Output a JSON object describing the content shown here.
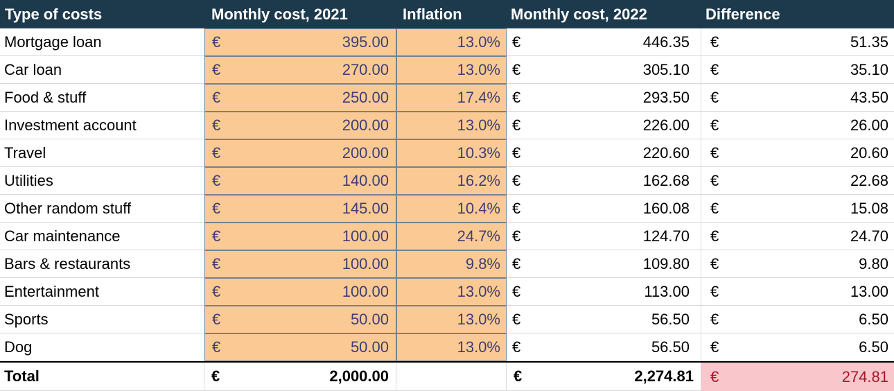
{
  "table": {
    "currency_symbol": "€",
    "headers": {
      "type": "Type of costs",
      "cost_2021": "Monthly cost, 2021",
      "inflation": "Inflation",
      "cost_2022": "Monthly cost, 2022",
      "difference": "Difference"
    },
    "rows": [
      {
        "type": "Mortgage loan",
        "cost_2021": "395.00",
        "inflation": "13.0%",
        "cost_2022": "446.35",
        "difference": "51.35"
      },
      {
        "type": "Car loan",
        "cost_2021": "270.00",
        "inflation": "13.0%",
        "cost_2022": "305.10",
        "difference": "35.10"
      },
      {
        "type": "Food & stuff",
        "cost_2021": "250.00",
        "inflation": "17.4%",
        "cost_2022": "293.50",
        "difference": "43.50"
      },
      {
        "type": "Investment account",
        "cost_2021": "200.00",
        "inflation": "13.0%",
        "cost_2022": "226.00",
        "difference": "26.00"
      },
      {
        "type": "Travel",
        "cost_2021": "200.00",
        "inflation": "10.3%",
        "cost_2022": "220.60",
        "difference": "20.60"
      },
      {
        "type": "Utilities",
        "cost_2021": "140.00",
        "inflation": "16.2%",
        "cost_2022": "162.68",
        "difference": "22.68"
      },
      {
        "type": "Other random stuff",
        "cost_2021": "145.00",
        "inflation": "10.4%",
        "cost_2022": "160.08",
        "difference": "15.08"
      },
      {
        "type": "Car maintenance",
        "cost_2021": "100.00",
        "inflation": "24.7%",
        "cost_2022": "124.70",
        "difference": "24.70"
      },
      {
        "type": "Bars & restaurants",
        "cost_2021": "100.00",
        "inflation": "9.8%",
        "cost_2022": "109.80",
        "difference": "9.80"
      },
      {
        "type": "Entertainment",
        "cost_2021": "100.00",
        "inflation": "13.0%",
        "cost_2022": "113.00",
        "difference": "13.00"
      },
      {
        "type": "Sports",
        "cost_2021": "50.00",
        "inflation": "13.0%",
        "cost_2022": "56.50",
        "difference": "6.50"
      },
      {
        "type": "Dog",
        "cost_2021": "50.00",
        "inflation": "13.0%",
        "cost_2022": "56.50",
        "difference": "6.50"
      }
    ],
    "total": {
      "label": "Total",
      "cost_2021": "2,000.00",
      "inflation": "",
      "cost_2022": "2,274.81",
      "difference": "274.81"
    }
  },
  "colors": {
    "header_bg": "#1d3a4d",
    "header_text": "#ffffff",
    "highlight_bg": "#fbca94",
    "highlight_border": "#74828c",
    "highlight_text": "#3e3d72",
    "row_divider": "#d9d9d9",
    "total_rule": "#000000",
    "total_diff_bg": "#f8c6cb",
    "total_diff_text": "#a41826"
  }
}
